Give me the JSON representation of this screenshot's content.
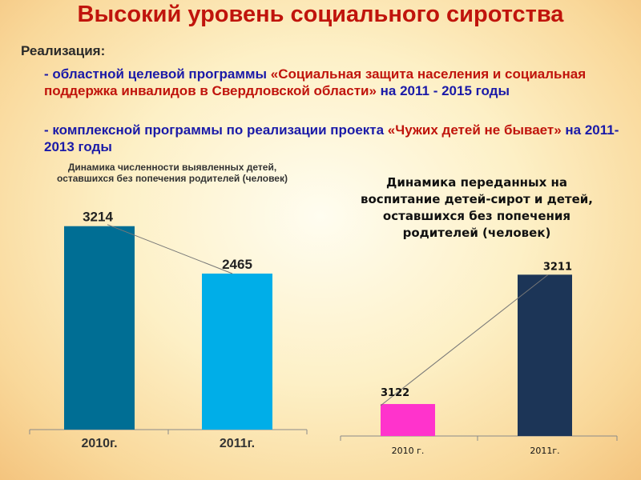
{
  "slide": {
    "title": "Высокий уровень социального сиротства",
    "lead": "Реализация:",
    "bullets": [
      {
        "plain": "- областной целевой программы ",
        "em": "«Социальная защита населения и социальная поддержка инвалидов в Свердловской области»",
        "plain2": " на 2011 - 2015 годы"
      },
      {
        "plain": "- комплексной программы по реализации проекта ",
        "em": "«Чужих детей не бывает»",
        "plain2": " на 2011-2013 годы"
      }
    ]
  },
  "chart_data": [
    {
      "type": "bar",
      "title": "Динамика численности выявленных детей, оставшихся без попечения родителей (человек)",
      "categories": [
        "2010г.",
        "2011г."
      ],
      "values": [
        3214,
        2465
      ],
      "colors": [
        "#006e94",
        "#00aee8"
      ],
      "ylim": [
        0,
        3400
      ],
      "trendline": true
    },
    {
      "type": "bar",
      "title": "Динамика переданных на воспитание детей-сирот и детей, оставшихся без попечения родителей (человек)",
      "categories": [
        "2010 г.",
        "2011г."
      ],
      "values": [
        3122,
        3211
      ],
      "colors": [
        "#ff33cc",
        "#1c3557"
      ],
      "ylim": [
        3100,
        3220
      ],
      "trendline": true
    }
  ]
}
